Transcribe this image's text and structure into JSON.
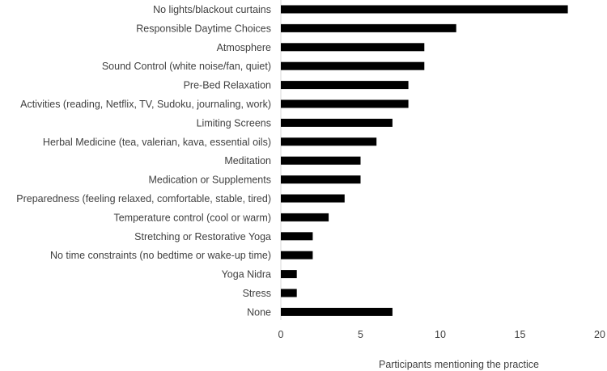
{
  "chart_data": {
    "type": "bar",
    "orientation": "horizontal",
    "title": "",
    "xlabel": "Participants mentioning the practice",
    "ylabel": "",
    "xlim": [
      0,
      20
    ],
    "xticks": [
      0,
      5,
      10,
      15,
      20
    ],
    "grid": false,
    "legend": "none",
    "bar_color": "#000000",
    "categories": [
      "No lights/blackout curtains",
      "Responsible Daytime Choices",
      "Atmosphere",
      "Sound Control (white noise/fan, quiet)",
      "Pre-Bed Relaxation",
      "Activities (reading, Netflix, TV, Sudoku, journaling, work)",
      "Limiting Screens",
      "Herbal Medicine (tea, valerian, kava, essential oils)",
      "Meditation",
      "Medication or Supplements",
      "Preparedness (feeling relaxed, comfortable, stable, tired)",
      "Temperature control (cool or warm)",
      "Stretching or Restorative Yoga",
      "No time constraints (no bedtime or wake-up time)",
      "Yoga Nidra",
      "Stress",
      "None"
    ],
    "values": [
      18,
      11,
      9,
      9,
      8,
      8,
      7,
      6,
      5,
      5,
      4,
      3,
      2,
      2,
      1,
      1,
      7
    ]
  }
}
